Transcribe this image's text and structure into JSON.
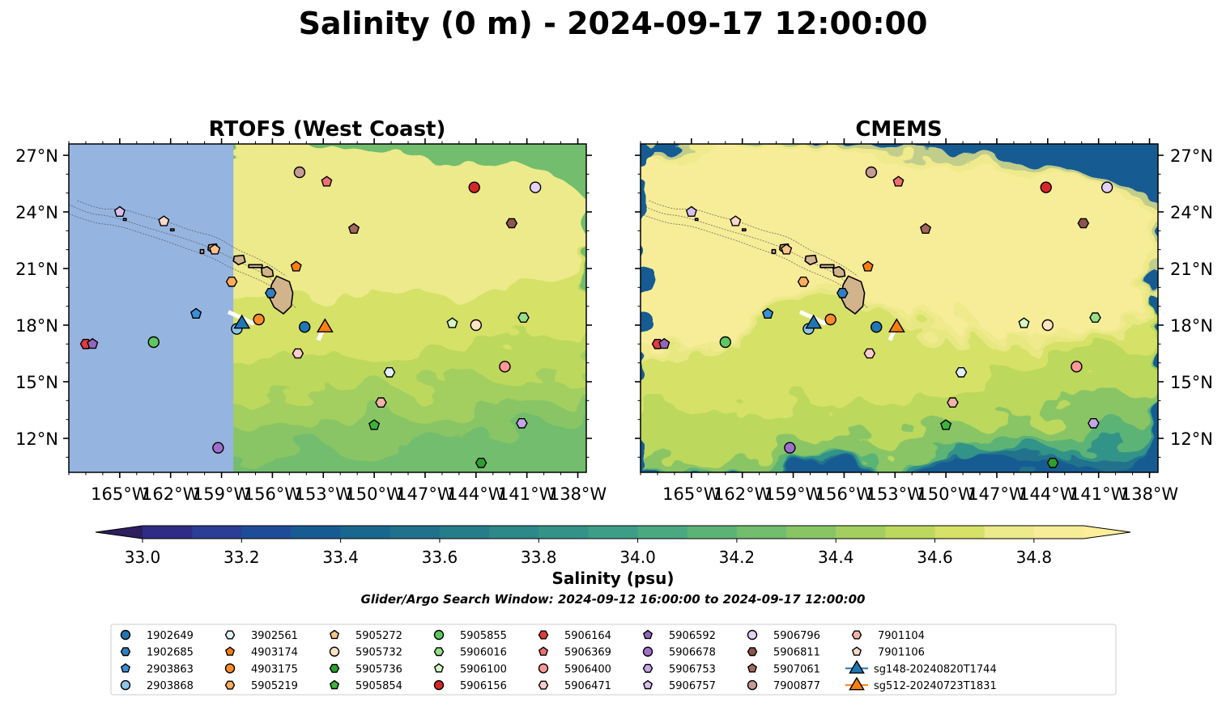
{
  "figure": {
    "title": "Salinity (0 m) - 2024-09-17 12:00:00",
    "search_window": "Glider/Argo Search Window: 2024-09-12 16:00:00 to 2024-09-17 12:00:00"
  },
  "chart_data": [
    {
      "type": "heatmap",
      "title": "RTOFS (West Coast)",
      "variable": "Salinity",
      "depth": "0 m",
      "xlim": [
        -168,
        -137.5
      ],
      "ylim": [
        10.2,
        27.6
      ],
      "x_ticks": [
        "165°W",
        "162°W",
        "159°W",
        "156°W",
        "153°W",
        "150°W",
        "147°W",
        "144°W",
        "141°W",
        "138°W"
      ],
      "y_ticks": [
        "12°N",
        "15°N",
        "18°N",
        "21°N",
        "24°N",
        "27°N"
      ],
      "y_tick_side": "left",
      "model_west_edge_lon": -158.3,
      "no_data_color": "#96b4e0"
    },
    {
      "type": "heatmap",
      "title": "CMEMS",
      "variable": "Salinity",
      "depth": "0 m",
      "xlim": [
        -168,
        -137.5
      ],
      "ylim": [
        10.2,
        27.6
      ],
      "x_ticks": [
        "165°W",
        "162°W",
        "159°W",
        "156°W",
        "153°W",
        "150°W",
        "147°W",
        "144°W",
        "141°W",
        "138°W"
      ],
      "y_ticks": [
        "12°N",
        "15°N",
        "18°N",
        "21°N",
        "24°N",
        "27°N"
      ],
      "y_tick_side": "right"
    }
  ],
  "colorbar": {
    "label": "Salinity (psu)",
    "min": 32.9,
    "max": 34.9,
    "step": 0.1,
    "extend": "both",
    "tick_labels": [
      "33.0",
      "33.2",
      "33.4",
      "33.6",
      "33.8",
      "34.0",
      "34.2",
      "34.4",
      "34.6",
      "34.8"
    ],
    "colors": [
      "#2c1e5f",
      "#2e2c86",
      "#2b3d96",
      "#1f4c99",
      "#175b93",
      "#19678f",
      "#20728c",
      "#267d8a",
      "#2c8889",
      "#339388",
      "#3c9e86",
      "#4aa980",
      "#5cb376",
      "#72bd6e",
      "#89c565",
      "#a2cf5f",
      "#bcd85d",
      "#d6e168",
      "#ecea8a",
      "#f7ec98",
      "#fdee9a"
    ]
  },
  "observations": [
    {
      "id": "1902649",
      "lon": -154.1,
      "lat": 17.9,
      "marker": "circle",
      "color": "#1f77b4"
    },
    {
      "id": "1902685",
      "lon": -156.1,
      "lat": 19.7,
      "marker": "hexagon",
      "color": "#2f7fc1"
    },
    {
      "id": "2903863",
      "lon": -160.5,
      "lat": 18.6,
      "marker": "pentagon",
      "color": "#3a8fd6"
    },
    {
      "id": "2903868",
      "lon": -158.1,
      "lat": 17.8,
      "marker": "circle",
      "color": "#8ec5ea"
    },
    {
      "id": "3902561",
      "lon": -149.1,
      "lat": 15.5,
      "marker": "hexagon",
      "color": "#dff0fb"
    },
    {
      "id": "4903174",
      "lon": -154.6,
      "lat": 21.1,
      "marker": "pentagon",
      "color": "#ff7f0e"
    },
    {
      "id": "4903175",
      "lon": -156.8,
      "lat": 18.3,
      "marker": "circle",
      "color": "#ff8c28"
    },
    {
      "id": "5905219",
      "lon": -158.4,
      "lat": 20.3,
      "marker": "hexagon",
      "color": "#ffac5c"
    },
    {
      "id": "5905272",
      "lon": -159.4,
      "lat": 22.0,
      "marker": "pentagon",
      "color": "#ffc48a"
    },
    {
      "id": "5905732",
      "lon": -144.0,
      "lat": 18.0,
      "marker": "circle",
      "color": "#ffe4c4"
    },
    {
      "id": "5905736",
      "lon": -143.7,
      "lat": 10.7,
      "marker": "hexagon",
      "color": "#2ca02c"
    },
    {
      "id": "5905854",
      "lon": -150.0,
      "lat": 12.7,
      "marker": "pentagon",
      "color": "#3cb43c"
    },
    {
      "id": "5905855",
      "lon": -163.0,
      "lat": 17.1,
      "marker": "circle",
      "color": "#5fc75f"
    },
    {
      "id": "5906016",
      "lon": -141.2,
      "lat": 18.4,
      "marker": "hexagon",
      "color": "#98df8a"
    },
    {
      "id": "5906100",
      "lon": -145.4,
      "lat": 18.1,
      "marker": "pentagon",
      "color": "#d4f7c4"
    },
    {
      "id": "5906156",
      "lon": -144.1,
      "lat": 25.3,
      "marker": "circle",
      "color": "#d62728"
    },
    {
      "id": "5906164",
      "lon": -167,
      "lat": 17.0,
      "marker": "hexagon",
      "color": "#e03c3c"
    },
    {
      "id": "5906369",
      "lon": -152.8,
      "lat": 25.6,
      "marker": "pentagon",
      "color": "#f07070"
    },
    {
      "id": "5906400",
      "lon": -142.3,
      "lat": 15.8,
      "marker": "circle",
      "color": "#ff9896"
    },
    {
      "id": "5906471",
      "lon": -154.5,
      "lat": 16.5,
      "marker": "hexagon",
      "color": "#ffcccc"
    },
    {
      "id": "5906592",
      "lon": -166.6,
      "lat": 17.0,
      "marker": "pentagon",
      "color": "#9467bd"
    },
    {
      "id": "5906678",
      "lon": -159.2,
      "lat": 11.5,
      "marker": "circle",
      "color": "#9e6fcc"
    },
    {
      "id": "5906753",
      "lon": -141.3,
      "lat": 12.8,
      "marker": "hexagon",
      "color": "#c5a6e8"
    },
    {
      "id": "5906757",
      "lon": -165.0,
      "lat": 24.0,
      "marker": "pentagon",
      "color": "#d9bff0"
    },
    {
      "id": "5906796",
      "lon": -140.5,
      "lat": 25.3,
      "marker": "circle",
      "color": "#e5d0f7"
    },
    {
      "id": "5906811",
      "lon": -141.9,
      "lat": 23.4,
      "marker": "hexagon",
      "color": "#8c564b"
    },
    {
      "id": "5907061",
      "lon": -151.2,
      "lat": 23.1,
      "marker": "pentagon",
      "color": "#a5695c"
    },
    {
      "id": "7900877",
      "lon": -154.4,
      "lat": 26.1,
      "marker": "circle",
      "color": "#c49c94"
    },
    {
      "id": "7901104",
      "lon": -149.6,
      "lat": 13.9,
      "marker": "hexagon",
      "color": "#f2b3a8"
    },
    {
      "id": "7901106",
      "lon": -162.4,
      "lat": 23.5,
      "marker": "pentagon",
      "color": "#ffd8cc"
    },
    {
      "id": "sg148-20240820T1744",
      "lon": -157.8,
      "lat": 18.1,
      "marker": "triangle",
      "color": "#1f77b4"
    },
    {
      "id": "sg512-20240723T1831",
      "lon": -152.9,
      "lat": 17.9,
      "marker": "triangle",
      "color": "#ff7f0e"
    }
  ]
}
